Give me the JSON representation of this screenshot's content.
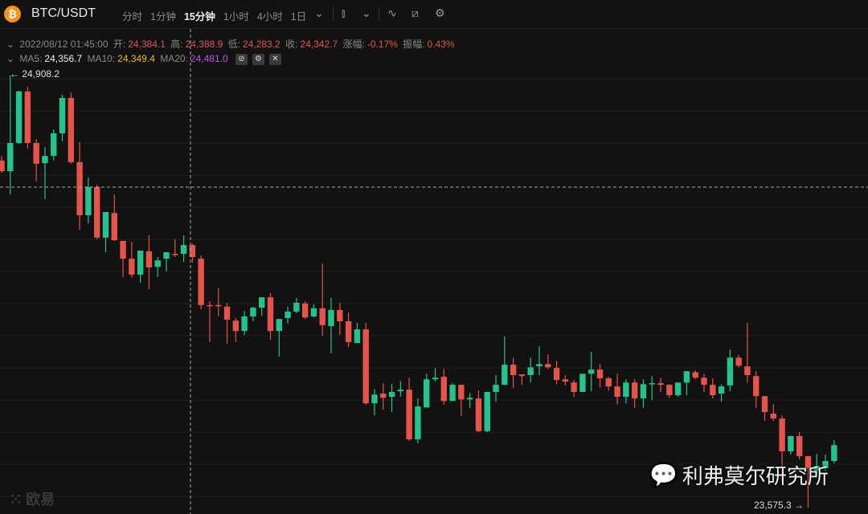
{
  "header": {
    "symbol": "BTC/USDT",
    "logo_glyph": "₿",
    "intervals": [
      "分时",
      "1分钟",
      "15分钟",
      "1小时",
      "4小时",
      "1日"
    ],
    "active_interval": "15分钟"
  },
  "info": {
    "datetime": "2022/08/12 01:45:00",
    "open_label": "开:",
    "open": "24,384.1",
    "high_label": "高:",
    "high": "24,388.9",
    "low_label": "低:",
    "low": "24,283.2",
    "close_label": "收:",
    "close": "24,342.7",
    "change_label": "涨幅:",
    "change": "-0.17%",
    "amp_label": "振幅:",
    "amp": "0.43%"
  },
  "ma": {
    "ma5_label": "MA5:",
    "ma5": "24,356.7",
    "ma10_label": "MA10:",
    "ma10": "24,349.4",
    "ma20_label": "MA20:",
    "ma20": "24,481.0"
  },
  "colors": {
    "up": "#23c38e",
    "down": "#e5534b",
    "ma5": "#eeeeee",
    "ma10": "#f0b90b",
    "ma20": "#c154e8"
  },
  "watermark": {
    "text": "利弗莫尔研究所",
    "brand": "欧易"
  },
  "chart_data": {
    "type": "candlestick",
    "max_label": "← 24,908.2",
    "min_label": "23,575.3 →",
    "ylim": [
      23575.3,
      24908.2
    ],
    "candles_ohlc": [
      [
        24646,
        24660,
        24608,
        24613
      ],
      [
        24613,
        24908.2,
        24541,
        24700
      ],
      [
        24700,
        24862,
        24697,
        24859
      ],
      [
        24859,
        24873,
        24683,
        24700
      ],
      [
        24700,
        24712,
        24581,
        24636
      ],
      [
        24638,
        24688,
        24526,
        24660
      ],
      [
        24660,
        24742,
        24646,
        24730
      ],
      [
        24730,
        24849,
        24705,
        24839
      ],
      [
        24839,
        24856,
        24636,
        24641
      ],
      [
        24641,
        24702,
        24432,
        24477
      ],
      [
        24477,
        24594,
        24452,
        24564
      ],
      [
        24564,
        24571,
        24403,
        24408
      ],
      [
        24408,
        24487,
        24363,
        24487
      ],
      [
        24484,
        24541,
        24398,
        24400
      ],
      [
        24398,
        24398,
        24286,
        24343
      ],
      [
        24343,
        24395,
        24284,
        24294
      ],
      [
        24294,
        24368,
        24269,
        24368
      ],
      [
        24366,
        24415,
        24249,
        24316
      ],
      [
        24318,
        24348,
        24286,
        24338
      ],
      [
        24343,
        24363,
        24304,
        24363
      ],
      [
        24358,
        24403,
        24348,
        24356
      ],
      [
        24358,
        24415,
        24333,
        24385
      ],
      [
        24385,
        24390,
        24331,
        24348
      ],
      [
        24343,
        24353,
        24187,
        24200
      ],
      [
        24200,
        24212,
        24086,
        24198
      ],
      [
        24200,
        24252,
        24165,
        24197
      ],
      [
        24195,
        24207,
        24081,
        24155
      ],
      [
        24152,
        24160,
        24086,
        24120
      ],
      [
        24120,
        24182,
        24108,
        24165
      ],
      [
        24165,
        24195,
        24150,
        24192
      ],
      [
        24192,
        24224,
        24167,
        24224
      ],
      [
        24224,
        24237,
        24093,
        24120
      ],
      [
        24120,
        24157,
        24041,
        24157
      ],
      [
        24160,
        24195,
        24143,
        24180
      ],
      [
        24180,
        24222,
        24175,
        24207
      ],
      [
        24205,
        24212,
        24157,
        24162
      ],
      [
        24165,
        24202,
        24162,
        24190
      ],
      [
        24190,
        24328,
        24105,
        24138
      ],
      [
        24135,
        24222,
        24051,
        24185
      ],
      [
        24185,
        24207,
        24108,
        24150
      ],
      [
        24150,
        24177,
        24071,
        24086
      ],
      [
        24083,
        24145,
        24083,
        24125
      ],
      [
        24125,
        24145,
        23892,
        23897
      ],
      [
        23897,
        23941,
        23860,
        23924
      ],
      [
        23927,
        23959,
        23877,
        23914
      ],
      [
        23917,
        23956,
        23870,
        23932
      ],
      [
        23934,
        23966,
        23917,
        23939
      ],
      [
        23939,
        23976,
        23781,
        23786
      ],
      [
        23786,
        23912,
        23773,
        23887
      ],
      [
        23884,
        23988,
        23884,
        23971
      ],
      [
        23971,
        24006,
        23964,
        23976
      ],
      [
        23979,
        24003,
        23892,
        23904
      ],
      [
        23904,
        23959,
        23904,
        23954
      ],
      [
        23954,
        23954,
        23857,
        23909
      ],
      [
        23909,
        23929,
        23882,
        23914
      ],
      [
        23912,
        23936,
        23808,
        23811
      ],
      [
        23811,
        23932,
        23808,
        23932
      ],
      [
        23932,
        23984,
        23902,
        23954
      ],
      [
        23954,
        24103,
        23954,
        24016
      ],
      [
        24016,
        24038,
        23944,
        23984
      ],
      [
        23986,
        23986,
        23954,
        23981
      ],
      [
        23984,
        24038,
        23961,
        24008
      ],
      [
        24011,
        24073,
        23984,
        24018
      ],
      [
        24018,
        24048,
        24003,
        24008
      ],
      [
        24006,
        24028,
        23956,
        23969
      ],
      [
        23971,
        23984,
        23952,
        23964
      ],
      [
        23961,
        23969,
        23917,
        23932
      ],
      [
        23932,
        23988,
        23932,
        23988
      ],
      [
        23988,
        24056,
        23934,
        24001
      ],
      [
        24001,
        24018,
        23946,
        23974
      ],
      [
        23974,
        23979,
        23936,
        23949
      ],
      [
        23949,
        23988,
        23894,
        23917
      ],
      [
        23917,
        23971,
        23897,
        23961
      ],
      [
        23961,
        23971,
        23882,
        23912
      ],
      [
        23912,
        23971,
        23882,
        23956
      ],
      [
        23956,
        23981,
        23907,
        23959
      ],
      [
        23959,
        23976,
        23932,
        23954
      ],
      [
        23954,
        23956,
        23914,
        23922
      ],
      [
        23922,
        23961,
        23917,
        23961
      ],
      [
        23961,
        23996,
        23922,
        23996
      ],
      [
        23993,
        23998,
        23971,
        23976
      ],
      [
        23976,
        23988,
        23932,
        23954
      ],
      [
        23954,
        23974,
        23912,
        23922
      ],
      [
        23927,
        23956,
        23902,
        23949
      ],
      [
        23952,
        24063,
        23934,
        24038
      ],
      [
        24038,
        24046,
        24008,
        24013
      ],
      [
        24011,
        24145,
        23961,
        23984
      ],
      [
        23981,
        23996,
        23882,
        23919
      ],
      [
        23919,
        23919,
        23843,
        23870
      ],
      [
        23865,
        23894,
        23843,
        23850
      ],
      [
        23850,
        23860,
        23654,
        23749
      ],
      [
        23749,
        23796,
        23739,
        23796
      ],
      [
        23796,
        23808,
        23724,
        23734
      ],
      [
        23734,
        23734,
        23575.3,
        23697
      ],
      [
        23689,
        23741,
        23672,
        23704
      ],
      [
        23697,
        23739,
        23689,
        23719
      ],
      [
        23719,
        23783,
        23712,
        23768
      ]
    ]
  }
}
